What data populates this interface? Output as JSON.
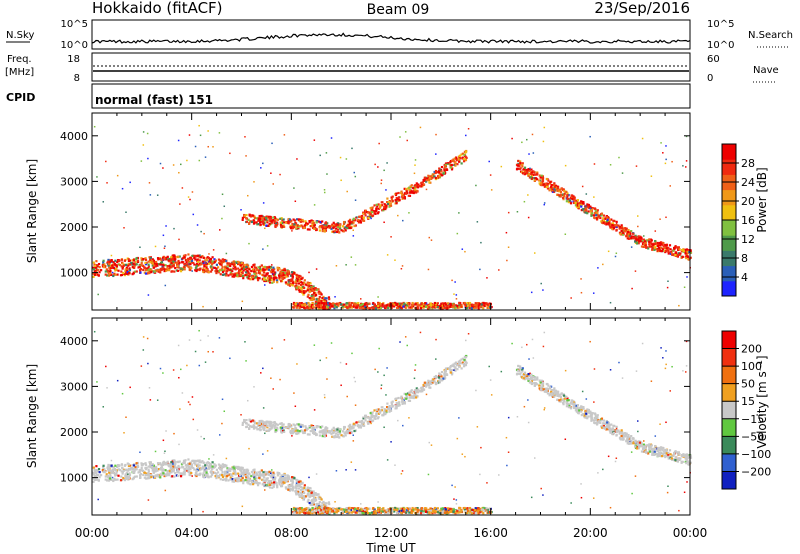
{
  "header": {
    "radar_title": "Hokkaido (fitACF)",
    "beam_label": "Beam 09",
    "date_label": "23/Sep/2016"
  },
  "strip": {
    "nsky_label": "N.Sky",
    "nsky_ticks": [
      "10^5",
      "10^0"
    ],
    "nsearch_label": "N.Search",
    "nsearch_ticks": [
      "10^5",
      "10^0"
    ],
    "freq_label": "Freq.",
    "freq_unit": "[MHz]",
    "freq_ticks": [
      "18",
      "8"
    ],
    "nave_label": "Nave",
    "nave_ticks": [
      "60",
      "0"
    ],
    "cpid_label": "CPID",
    "cpid_value": "normal (fast) 151"
  },
  "chart_data": [
    {
      "type": "heatmap",
      "panel": "power",
      "ylabel": "Slant Range [km]",
      "ylim": [
        180,
        4500
      ],
      "y_ticks": [
        1000,
        2000,
        3000,
        4000
      ],
      "x_ticks": [
        "00:00",
        "04:00",
        "08:00",
        "12:00",
        "16:00",
        "20:00",
        "00:00"
      ],
      "xlim_hours": [
        0,
        24
      ],
      "colorbar": {
        "label": "Power [dB]",
        "ticks": [
          4,
          8,
          12,
          16,
          20,
          24,
          28
        ],
        "colors": [
          "#1e24ff",
          "#2a5fb8",
          "#3a7a6b",
          "#4f9a4a",
          "#80c040",
          "#f0c010",
          "#f09818",
          "#f06018",
          "#f02a10",
          "#ee0000"
        ]
      },
      "echo_bands": [
        {
          "name": "lower band",
          "t": [
            0,
            4,
            8,
            9.5
          ],
          "r": [
            1100,
            1250,
            900,
            300
          ]
        },
        {
          "name": "rising arc",
          "t": [
            6,
            10,
            13,
            15
          ],
          "r": [
            2200,
            2000,
            2900,
            3600
          ]
        },
        {
          "name": "falling arc",
          "t": [
            17,
            19,
            22,
            24
          ],
          "r": [
            3400,
            2700,
            1700,
            1400
          ]
        },
        {
          "name": "near range",
          "t": [
            8,
            12,
            16
          ],
          "r": [
            300,
            300,
            300
          ]
        }
      ]
    },
    {
      "type": "heatmap",
      "panel": "velocity",
      "ylabel": "Slant Range [km]",
      "ylim": [
        180,
        4500
      ],
      "y_ticks": [
        1000,
        2000,
        3000,
        4000
      ],
      "x_ticks": [
        "00:00",
        "04:00",
        "08:00",
        "12:00",
        "16:00",
        "20:00",
        "00:00"
      ],
      "xlabel": "Time UT",
      "xlim_hours": [
        0,
        24
      ],
      "colorbar": {
        "label": "Velocity [m s⁻¹]",
        "ticks": [
          200,
          100,
          50,
          15,
          -15,
          -50,
          -100,
          -200
        ],
        "colors": [
          "#1020c0",
          "#3060d0",
          "#3a8a5a",
          "#60c840",
          "#c8c8c8",
          "#f0a020",
          "#f07010",
          "#f03010",
          "#ee0000"
        ]
      }
    }
  ]
}
